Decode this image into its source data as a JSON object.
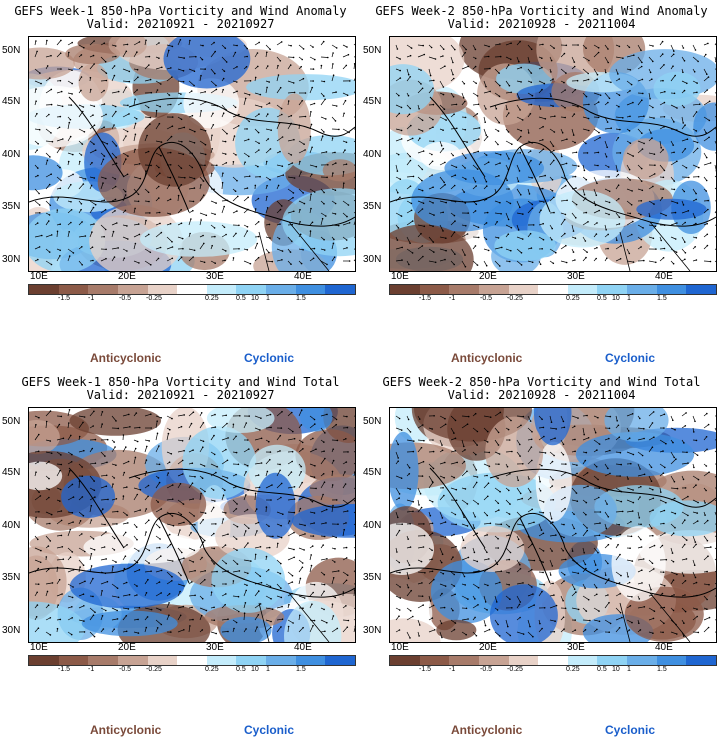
{
  "panels": [
    {
      "title": "GEFS Week-1 850-hPa Vorticity and Wind Anomaly",
      "valid": "Valid: 20210921 - 20210927"
    },
    {
      "title": "GEFS Week-2 850-hPa Vorticity and Wind Anomaly",
      "valid": "Valid: 20210928 - 20211004"
    },
    {
      "title": "GEFS Week-1 850-hPa Vorticity and Wind Total",
      "valid": "Valid: 20210921 - 20210927"
    },
    {
      "title": "GEFS Week-2 850-hPa Vorticity and Wind Total",
      "valid": "Valid: 20210928 - 20211004"
    }
  ],
  "lat_labels": [
    "50N",
    "45N",
    "40N",
    "35N",
    "30N"
  ],
  "lon_labels": [
    "10E",
    "20E",
    "30E",
    "40E"
  ],
  "colorbar": {
    "colors": [
      "#6b3f30",
      "#8c5a48",
      "#a77b6a",
      "#c7a394",
      "#e8d2c8",
      "#ffffff",
      "#c4ecfb",
      "#8fd3f4",
      "#6aaee8",
      "#3f8fe0",
      "#1f66d1"
    ],
    "tick_labels": [
      "-1.5",
      "-1",
      "-0.5",
      "-0.25",
      "0.25",
      "0.5",
      "1",
      "1.5"
    ],
    "scale_note": "10"
  },
  "legend": {
    "anticyclonic": "Anticyclonic",
    "cyclonic": "Cyclonic"
  }
}
